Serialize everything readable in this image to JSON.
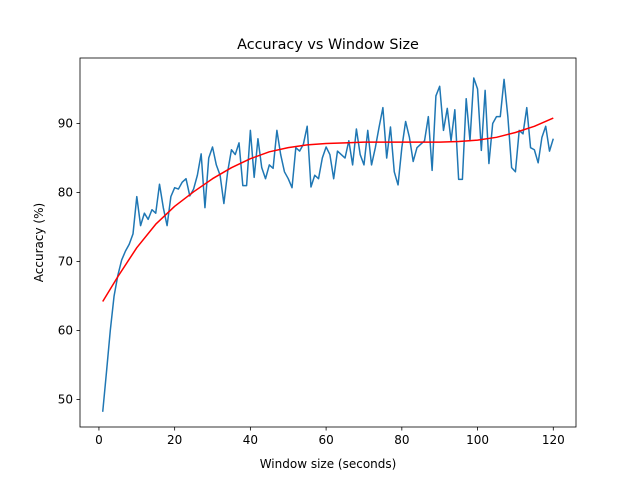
{
  "chart_data": {
    "type": "line",
    "title": "Accuracy vs Window Size",
    "xlabel": "Window size (seconds)",
    "ylabel": "Accuracy (%)",
    "xlim": [
      -5,
      126
    ],
    "ylim": [
      46,
      99.5
    ],
    "xticks": [
      0,
      20,
      40,
      60,
      80,
      100,
      120
    ],
    "yticks": [
      50,
      60,
      70,
      80,
      90
    ],
    "grid": false,
    "legend": "none",
    "series": [
      {
        "color": "#1f77b4",
        "x": [
          1,
          2,
          3,
          4,
          5,
          6,
          7,
          8,
          9,
          10,
          11,
          12,
          13,
          14,
          15,
          16,
          17,
          18,
          19,
          20,
          21,
          22,
          23,
          24,
          25,
          26,
          27,
          28,
          29,
          30,
          31,
          32,
          33,
          34,
          35,
          36,
          37,
          38,
          39,
          40,
          41,
          42,
          43,
          44,
          45,
          46,
          47,
          48,
          49,
          50,
          51,
          52,
          53,
          54,
          55,
          56,
          57,
          58,
          59,
          60,
          61,
          62,
          63,
          64,
          65,
          66,
          67,
          68,
          69,
          70,
          71,
          72,
          73,
          74,
          75,
          76,
          77,
          78,
          79,
          80,
          81,
          82,
          83,
          84,
          85,
          86,
          87,
          88,
          89,
          90,
          91,
          92,
          93,
          94,
          95,
          96,
          97,
          98,
          99,
          100,
          101,
          102,
          103,
          104,
          105,
          106,
          107,
          108,
          109,
          110,
          111,
          112,
          113,
          114,
          115,
          116,
          117,
          118,
          119,
          120
        ],
        "values": [
          48.2,
          54.0,
          60.0,
          65.0,
          68.0,
          70.2,
          71.5,
          72.5,
          74.0,
          79.4,
          75.2,
          77.0,
          76.1,
          77.5,
          77.0,
          81.2,
          77.8,
          75.2,
          79.4,
          80.7,
          80.5,
          81.5,
          82.0,
          79.5,
          80.5,
          82.5,
          85.6,
          77.8,
          85.0,
          86.6,
          84.0,
          82.5,
          78.4,
          83.0,
          86.2,
          85.5,
          87.2,
          81.0,
          81.0,
          89.0,
          82.2,
          87.8,
          83.6,
          82.0,
          84.0,
          83.5,
          89.0,
          85.5,
          83.0,
          82.0,
          80.7,
          86.5,
          86.0,
          87.0,
          89.6,
          80.8,
          82.5,
          82.0,
          85.0,
          86.6,
          85.5,
          82.0,
          86.0,
          85.5,
          85.0,
          87.5,
          84.0,
          89.2,
          85.5,
          84.0,
          89.0,
          84.0,
          86.5,
          89.5,
          92.3,
          85.0,
          89.5,
          83.0,
          81.1,
          86.5,
          90.3,
          88.0,
          84.5,
          86.5,
          87.0,
          87.5,
          91.0,
          83.2,
          94.0,
          95.4,
          89.0,
          92.2,
          87.5,
          92.0,
          81.9,
          81.9,
          93.6,
          87.5,
          96.6,
          95.0,
          86.1,
          94.8,
          84.2,
          90.0,
          91.0,
          91.0,
          96.4,
          91.0,
          83.6,
          83.0,
          89.0,
          88.5,
          92.3,
          86.5,
          86.2,
          84.3,
          88.0,
          89.6,
          86.0,
          87.8
        ]
      },
      {
        "color": "#ff0000",
        "x": [
          1,
          5,
          10,
          15,
          20,
          25,
          30,
          35,
          40,
          45,
          50,
          55,
          60,
          65,
          70,
          75,
          80,
          85,
          90,
          95,
          100,
          105,
          110,
          115,
          120
        ],
        "values": [
          64.2,
          67.8,
          72.0,
          75.4,
          78.0,
          80.1,
          82.0,
          83.6,
          84.9,
          85.9,
          86.5,
          86.9,
          87.1,
          87.2,
          87.3,
          87.3,
          87.3,
          87.3,
          87.3,
          87.4,
          87.6,
          88.0,
          88.7,
          89.6,
          90.8
        ]
      }
    ]
  }
}
